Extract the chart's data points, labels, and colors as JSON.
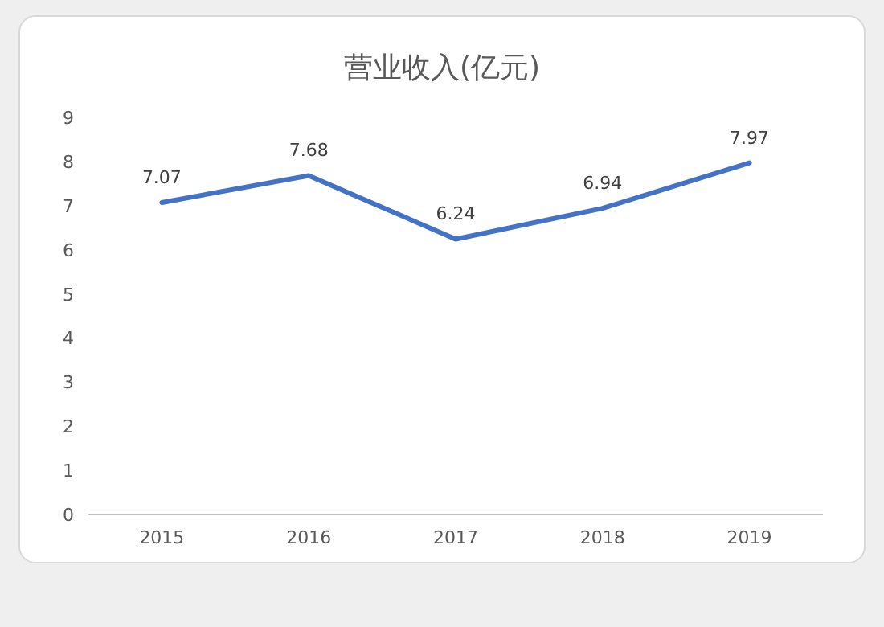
{
  "chart_data": {
    "type": "line",
    "title": "营业收入(亿元)",
    "categories": [
      "2015",
      "2016",
      "2017",
      "2018",
      "2019"
    ],
    "values": [
      7.07,
      7.68,
      6.24,
      6.94,
      7.97
    ],
    "color": "#4472c4",
    "ylim": [
      0,
      9
    ],
    "yticks": [
      0,
      1,
      2,
      3,
      4,
      5,
      6,
      7,
      8,
      9
    ],
    "data_labels": true
  }
}
